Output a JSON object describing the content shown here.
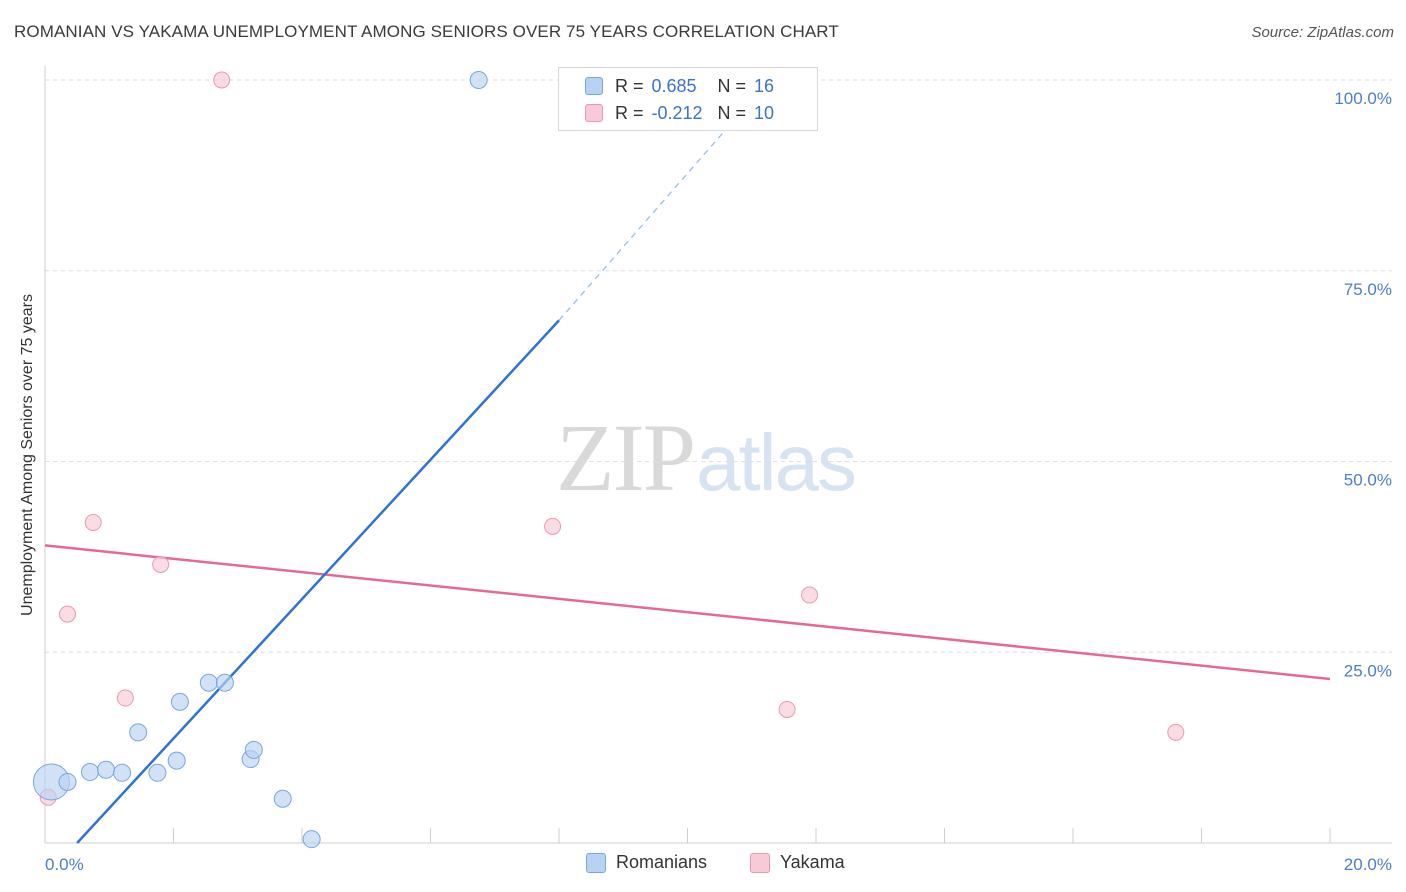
{
  "title": "ROMANIAN VS YAKAMA UNEMPLOYMENT AMONG SENIORS OVER 75 YEARS CORRELATION CHART",
  "source": "Source: ZipAtlas.com",
  "watermark": {
    "zip": "ZIP",
    "atlas": "atlas"
  },
  "colors": {
    "romanians_fill": "#b8d2f3",
    "romanians_stroke": "#7aa6df",
    "romanians_line": "#2e72d2",
    "yakama_fill": "#f8c9d6",
    "yakama_stroke": "#ec98b2",
    "yakama_line": "#e36a96",
    "tick_label": "#4a7fc8",
    "grid": "#dedede"
  },
  "legend": {
    "romanians": {
      "r_label": "R =",
      "r_value": "0.685",
      "n_label": "N =",
      "n_value": "16"
    },
    "yakama": {
      "r_label": "R =",
      "r_value": "-0.212",
      "n_label": "N =",
      "n_value": "10"
    }
  },
  "chart_data": {
    "type": "scatter",
    "title": "ROMANIAN VS YAKAMA UNEMPLOYMENT AMONG SENIORS OVER 75 YEARS CORRELATION CHART",
    "xlabel": "",
    "ylabel": "Unemployment Among Seniors over 75 years",
    "xlim": [
      0,
      20
    ],
    "ylim": [
      0,
      100
    ],
    "x_tick_labels": [
      "0.0%",
      "20.0%"
    ],
    "y_ticks": [
      {
        "value": 25,
        "label": "25.0%"
      },
      {
        "value": 50,
        "label": "50.0%"
      },
      {
        "value": 75,
        "label": "75.0%"
      },
      {
        "value": 100,
        "label": "100.0%"
      }
    ],
    "grid": true,
    "legend_position": "bottom",
    "series": [
      {
        "name": "Romanians",
        "r": 0.685,
        "n": 16,
        "points": [
          {
            "x": 0.1,
            "y": 8.0,
            "big": true
          },
          {
            "x": 0.35,
            "y": 8.0
          },
          {
            "x": 0.7,
            "y": 9.3
          },
          {
            "x": 0.95,
            "y": 9.6
          },
          {
            "x": 1.2,
            "y": 9.2
          },
          {
            "x": 1.45,
            "y": 14.5
          },
          {
            "x": 1.75,
            "y": 9.2
          },
          {
            "x": 2.05,
            "y": 10.8
          },
          {
            "x": 2.1,
            "y": 18.5
          },
          {
            "x": 2.55,
            "y": 21.0
          },
          {
            "x": 2.8,
            "y": 21.0
          },
          {
            "x": 3.2,
            "y": 11.0
          },
          {
            "x": 3.25,
            "y": 12.2
          },
          {
            "x": 3.7,
            "y": 5.8
          },
          {
            "x": 4.15,
            "y": 0.5
          },
          {
            "x": 6.75,
            "y": 100.0
          }
        ],
        "trend": {
          "x0": 0.5,
          "y0": 0.0,
          "x1": 8.0,
          "y1": 68.5,
          "dashed_to_x": 10.7,
          "dashed_to_y": 94.5
        }
      },
      {
        "name": "Yakama",
        "r": -0.212,
        "n": 10,
        "points": [
          {
            "x": 0.05,
            "y": 6.0
          },
          {
            "x": 0.35,
            "y": 30.0
          },
          {
            "x": 0.75,
            "y": 42.0
          },
          {
            "x": 1.25,
            "y": 19.0
          },
          {
            "x": 1.8,
            "y": 36.5
          },
          {
            "x": 2.75,
            "y": 100.0
          },
          {
            "x": 7.9,
            "y": 41.5
          },
          {
            "x": 11.55,
            "y": 17.5
          },
          {
            "x": 11.9,
            "y": 32.5
          },
          {
            "x": 17.6,
            "y": 14.5
          }
        ],
        "trend": {
          "x0": 0.0,
          "y0": 39.0,
          "x1": 20.0,
          "y1": 21.5
        }
      }
    ]
  }
}
